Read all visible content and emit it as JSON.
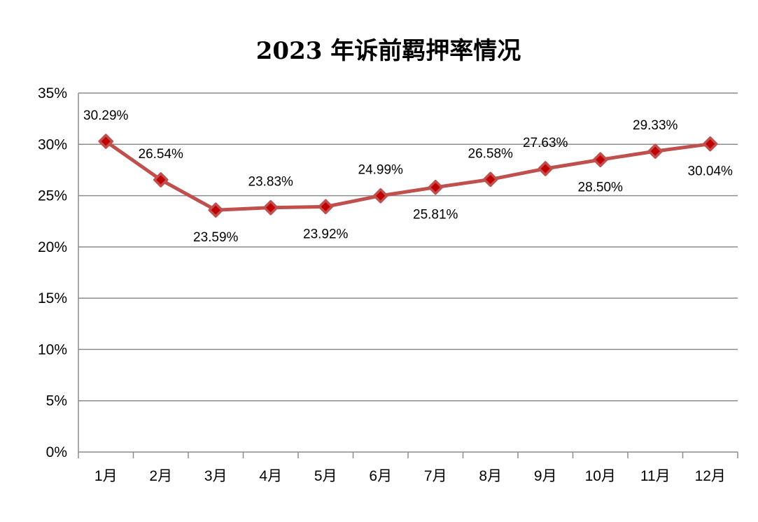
{
  "chart_data": {
    "type": "line",
    "title": "2023 年诉前羁押率情况",
    "xlabel": "",
    "ylabel": "",
    "categories": [
      "1月",
      "2月",
      "3月",
      "4月",
      "5月",
      "6月",
      "7月",
      "8月",
      "9月",
      "10月",
      "11月",
      "12月"
    ],
    "series": [
      {
        "values": [
          30.29,
          26.54,
          23.59,
          23.83,
          23.92,
          24.99,
          25.81,
          26.58,
          27.63,
          28.5,
          29.33,
          30.04
        ],
        "labels": [
          "30.29%",
          "26.54%",
          "23.59%",
          "23.83%",
          "23.92%",
          "24.99%",
          "25.81%",
          "26.58%",
          "27.63%",
          "28.50%",
          "29.33%",
          "30.04%"
        ],
        "label_positions": [
          "above",
          "above",
          "below",
          "above",
          "below",
          "above",
          "below",
          "above",
          "above",
          "below",
          "above",
          "below"
        ],
        "line_color": "#c0504d",
        "marker": "diamond",
        "marker_color": "#c00000"
      }
    ],
    "y_ticks": [
      {
        "value": 0,
        "label": "0%"
      },
      {
        "value": 5,
        "label": "5%"
      },
      {
        "value": 10,
        "label": "10%"
      },
      {
        "value": 15,
        "label": "15%"
      },
      {
        "value": 20,
        "label": "20%"
      },
      {
        "value": 25,
        "label": "25%"
      },
      {
        "value": 30,
        "label": "30%"
      },
      {
        "value": 35,
        "label": "35%"
      }
    ],
    "ylim": [
      0,
      35
    ],
    "grid": true,
    "legend": "none"
  }
}
